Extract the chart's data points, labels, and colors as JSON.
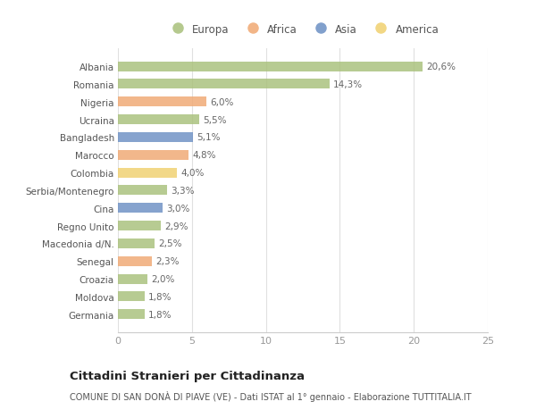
{
  "countries": [
    "Albania",
    "Romania",
    "Nigeria",
    "Ucraina",
    "Bangladesh",
    "Marocco",
    "Colombia",
    "Serbia/Montenegro",
    "Cina",
    "Regno Unito",
    "Macedonia d/N.",
    "Senegal",
    "Croazia",
    "Moldova",
    "Germania"
  ],
  "values": [
    20.6,
    14.3,
    6.0,
    5.5,
    5.1,
    4.8,
    4.0,
    3.3,
    3.0,
    2.9,
    2.5,
    2.3,
    2.0,
    1.8,
    1.8
  ],
  "labels": [
    "20,6%",
    "14,3%",
    "6,0%",
    "5,5%",
    "5,1%",
    "4,8%",
    "4,0%",
    "3,3%",
    "3,0%",
    "2,9%",
    "2,5%",
    "2,3%",
    "2,0%",
    "1,8%",
    "1,8%"
  ],
  "continents": [
    "Europa",
    "Europa",
    "Africa",
    "Europa",
    "Asia",
    "Africa",
    "America",
    "Europa",
    "Asia",
    "Europa",
    "Europa",
    "Africa",
    "Europa",
    "Europa",
    "Europa"
  ],
  "colors": {
    "Europa": "#a8c07a",
    "Africa": "#f0a872",
    "Asia": "#6b8fc4",
    "America": "#f0d06e"
  },
  "legend_order": [
    "Europa",
    "Africa",
    "Asia",
    "America"
  ],
  "title": "Cittadini Stranieri per Cittadinanza",
  "subtitle": "COMUNE DI SAN DONÀ DI PIAVE (VE) - Dati ISTAT al 1° gennaio - Elaborazione TUTTITALIA.IT",
  "xlim": [
    0,
    25
  ],
  "xticks": [
    0,
    5,
    10,
    15,
    20,
    25
  ],
  "background_color": "#ffffff",
  "grid_color": "#e0e0e0",
  "bar_height": 0.55
}
